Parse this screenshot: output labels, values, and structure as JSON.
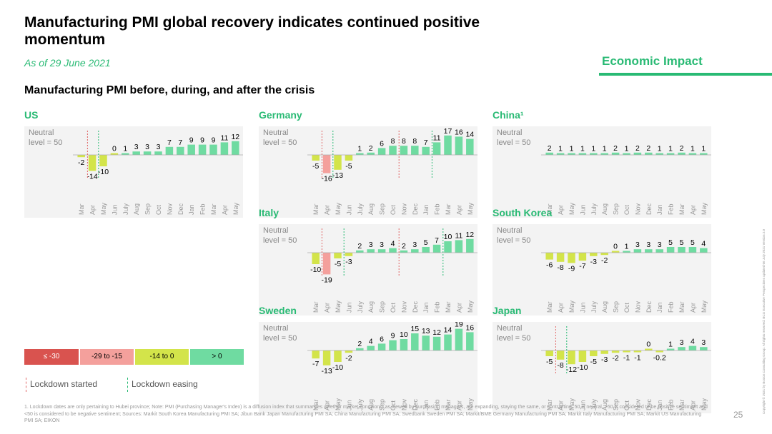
{
  "header": {
    "title": "Manufacturing PMI global recovery indicates continued positive momentum",
    "as_of": "As of 29 June 2021",
    "section": "Economic Impact",
    "subtitle": "Manufacturing PMI before, during, and after the crisis"
  },
  "colors": {
    "accent": "#29ba74",
    "le_-30": "#d9534f",
    "-29_-15": "#f4a09c",
    "-14_0": "#d3e44a",
    "gt_0": "#6fdba1",
    "lockdown": "#e06666",
    "easing": "#29ba74"
  },
  "chart_data": [
    {
      "type": "bar",
      "title": "US",
      "neutral_label": "Neutral\nlevel = 50",
      "categories": [
        "Mar",
        "Apr",
        "May",
        "Jun",
        "July",
        "Aug",
        "Sep",
        "Oct",
        "Nov",
        "Dec",
        "Jan",
        "Feb",
        "Mar",
        "Apr",
        "May"
      ],
      "values": [
        -2,
        -14,
        -10,
        0,
        1,
        3,
        3,
        3,
        7,
        7,
        9,
        9,
        9,
        11,
        12
      ],
      "lockdown": 1,
      "easing": 2
    },
    {
      "type": "bar",
      "title": "Germany",
      "neutral_label": "Neutral\nlevel = 50",
      "categories": [
        "Mar",
        "Apr",
        "May",
        "Jun",
        "July",
        "Aug",
        "Sep",
        "Oct",
        "Nov",
        "Dec",
        "Jan",
        "Feb",
        "Mar",
        "Apr",
        "May"
      ],
      "values": [
        -5,
        -16,
        -13,
        -5,
        1,
        2,
        6,
        8,
        8,
        8,
        7,
        11,
        17,
        16,
        14
      ],
      "lockdown": 1,
      "easing": 2,
      "lockdown2": 8,
      "easing2": 11
    },
    {
      "type": "bar",
      "title": "China¹",
      "neutral_label": "Neutral\nlevel = 50",
      "categories": [
        "Mar",
        "Apr",
        "May",
        "Jun",
        "July",
        "Aug",
        "Sep",
        "Oct",
        "Nov",
        "Dec",
        "Jan",
        "Feb",
        "Mar",
        "Apr",
        "May"
      ],
      "values": [
        2,
        1,
        1,
        1,
        1,
        1,
        2,
        1,
        2,
        2,
        1,
        1,
        2,
        1,
        1
      ]
    },
    {
      "type": "bar",
      "title": "Italy",
      "neutral_label": "Neutral\nlevel = 50",
      "categories": [
        "Mar",
        "Apr",
        "May",
        "Jun",
        "July",
        "Aug",
        "Sep",
        "Oct",
        "Nov",
        "Dec",
        "Jan",
        "Feb",
        "Mar",
        "Apr",
        "May"
      ],
      "values": [
        -10,
        -19,
        -5,
        -3,
        2,
        3,
        3,
        4,
        2,
        3,
        5,
        7,
        10,
        11,
        12
      ],
      "lockdown": 1,
      "easing": 3,
      "lockdown2": 8,
      "easing2": 12
    },
    {
      "type": "bar",
      "title": "South Korea",
      "neutral_label": "Neutral\nlevel = 50",
      "categories": [
        "Mar",
        "Apr",
        "May",
        "Jun",
        "July",
        "Aug",
        "Sep",
        "Oct",
        "Nov",
        "Dec",
        "Jan",
        "Feb",
        "Mar",
        "Apr",
        "May"
      ],
      "values": [
        -6,
        -8,
        -9,
        -7,
        -3,
        -2,
        0,
        1,
        3,
        3,
        3,
        5,
        5,
        5,
        4
      ]
    },
    {
      "type": "bar",
      "title": "Sweden",
      "neutral_label": "Neutral\nlevel = 50",
      "categories": [
        "Mar",
        "Apr",
        "May",
        "Jun",
        "July",
        "Aug",
        "Sep",
        "Oct",
        "Nov",
        "Dec",
        "Jan",
        "Feb",
        "Mar",
        "Apr",
        "May"
      ],
      "values": [
        -7,
        -13,
        -10,
        -2,
        2,
        4,
        6,
        9,
        10,
        15,
        13,
        12,
        14,
        19,
        16
      ]
    },
    {
      "type": "bar",
      "title": "Japan",
      "neutral_label": "Neutral\nlevel = 50",
      "categories": [
        "Mar",
        "Apr",
        "May",
        "Jun",
        "July",
        "Aug",
        "Sep",
        "Oct",
        "Nov",
        "Dec",
        "Jan",
        "Feb",
        "Mar",
        "Apr",
        "May"
      ],
      "values": [
        -5,
        -8,
        -12,
        -10,
        -5,
        -3,
        -2,
        -1,
        -1,
        0,
        -0.2,
        1,
        3,
        4,
        3
      ],
      "value_labels": [
        "-5",
        "-8",
        "-12",
        "-10",
        "-5",
        "-3",
        "-2",
        "-1",
        "-1",
        "0",
        "-0.2",
        "1",
        "3",
        "4",
        "3"
      ],
      "lockdown": 1,
      "easing": 2
    }
  ],
  "legend": {
    "ranges": [
      "≤ -30",
      "-29 to -15",
      "-14 to 0",
      "> 0"
    ],
    "lockdown_started": "Lockdown started",
    "lockdown_easing": "Lockdown easing"
  },
  "footnote": "1. Lockdown dates are only pertaining to Hubei province; Note: PMI (Purchasing Manager's Index) is a diffusion index that summarizes whether market conditions, as viewed by purchasing managers, are expanding, staying the same, or contracting. 50 is neutral, >50 is considered to be positive sentiment and <50 is considered to be negative sentiment; Sources: Markit South Korea Manufacturing PMI SA; Jibun Bank Japan Manufacturing PMI SA; China Manufacturing PMI SA; Swedbank Sweden PMI SA; Markit/BME Germany Manufacturing PMI SA; Markit Italy Manufacturing PMI SA; Markit US Manufacturing PMI SA; EIKON",
  "page_number": "25",
  "copyright": "Copyright © 2021 by Boston Consulting Group. All rights reserved. BCG Executive Perspectives updated 06 July 2021 Version 2.0"
}
